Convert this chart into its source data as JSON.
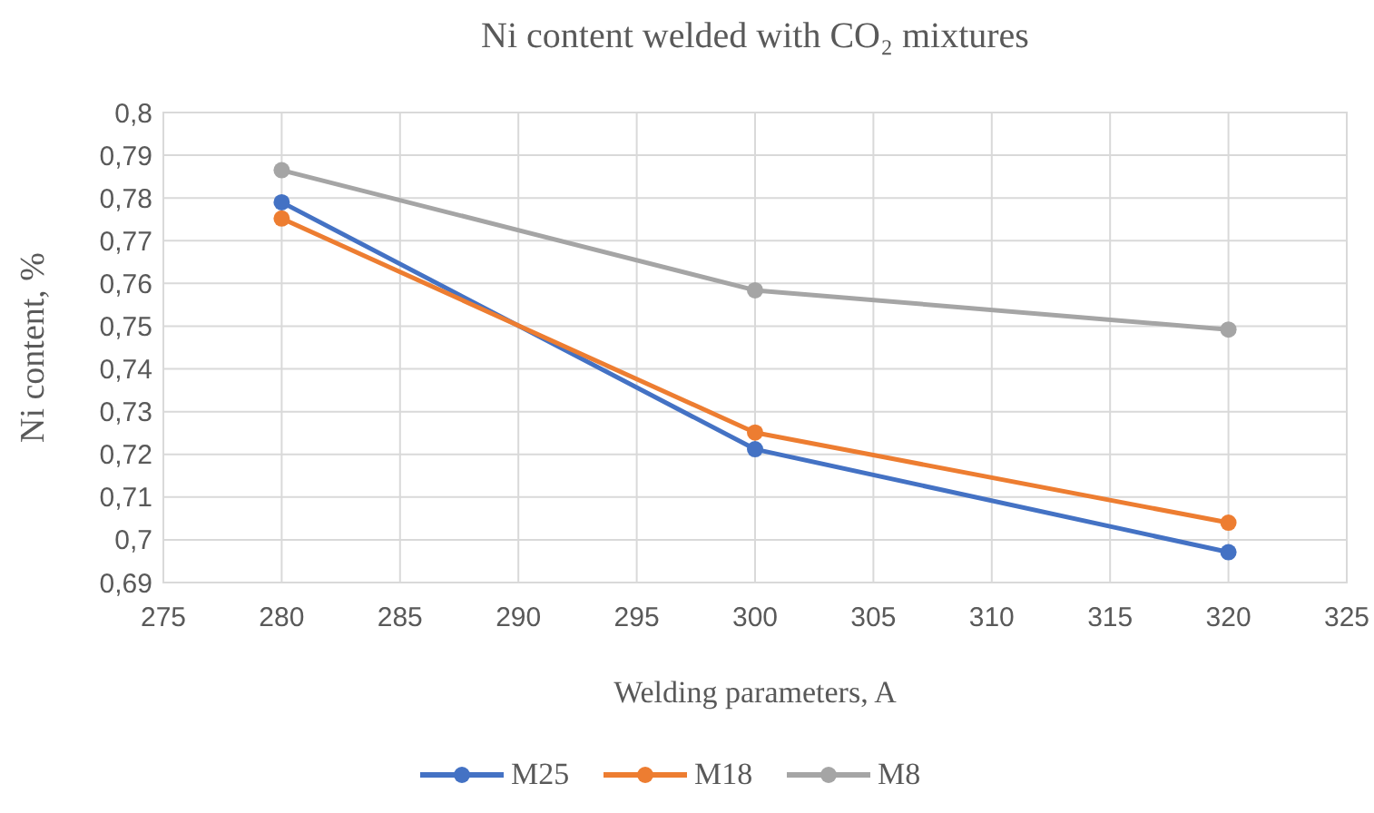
{
  "chart_data": {
    "type": "line",
    "title": "Ni content welded with CO₂ mixtures",
    "xlabel": "Welding parameters, A",
    "ylabel": "Ni content, %",
    "x": [
      280,
      300,
      320
    ],
    "series": [
      {
        "name": "M25",
        "color": "#4472c4",
        "values": [
          0.779,
          0.7212,
          0.6971
        ]
      },
      {
        "name": "M18",
        "color": "#ed7d31",
        "values": [
          0.7752,
          0.7251,
          0.704
        ]
      },
      {
        "name": "M8",
        "color": "#a5a5a5",
        "values": [
          0.7865,
          0.7584,
          0.7492
        ]
      }
    ],
    "xlim": [
      275,
      325
    ],
    "xticks": [
      275,
      280,
      285,
      290,
      295,
      300,
      305,
      310,
      315,
      320,
      325
    ],
    "ylim": [
      0.69,
      0.8
    ],
    "yticks": [
      {
        "value": 0.69,
        "label": "0,69"
      },
      {
        "value": 0.7,
        "label": "0,7"
      },
      {
        "value": 0.71,
        "label": "0,71"
      },
      {
        "value": 0.72,
        "label": "0,72"
      },
      {
        "value": 0.73,
        "label": "0,73"
      },
      {
        "value": 0.74,
        "label": "0,74"
      },
      {
        "value": 0.75,
        "label": "0,75"
      },
      {
        "value": 0.76,
        "label": "0,76"
      },
      {
        "value": 0.77,
        "label": "0,77"
      },
      {
        "value": 0.78,
        "label": "0,78"
      },
      {
        "value": 0.79,
        "label": "0,79"
      },
      {
        "value": 0.8,
        "label": "0,8"
      }
    ],
    "grid": true,
    "legend": "bottom",
    "marker": "circle",
    "line_style": "solid"
  }
}
